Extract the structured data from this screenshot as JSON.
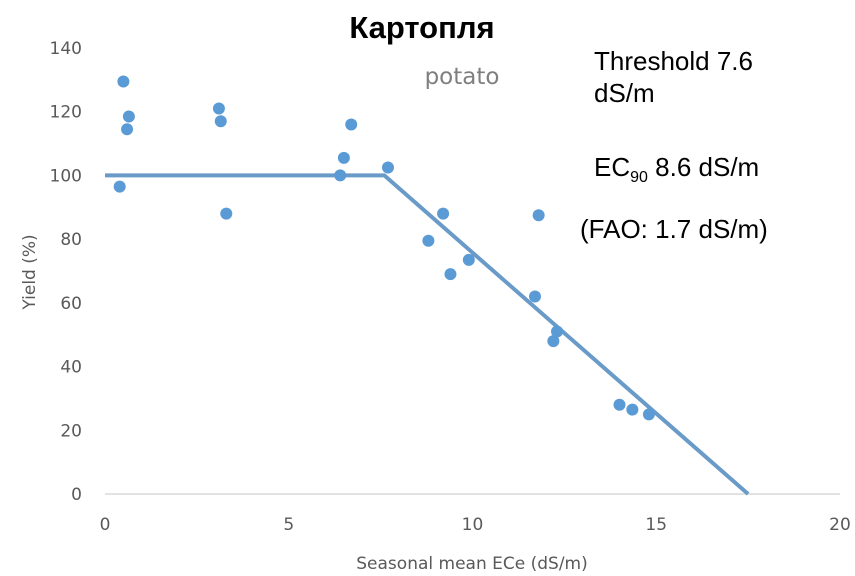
{
  "chart_data": {
    "type": "scatter",
    "title": "Картопля",
    "subtitle": "potato",
    "xlabel": "Seasonal mean ECe (dS/m)",
    "ylabel": "Yield (%)",
    "xlim": [
      0,
      20
    ],
    "ylim": [
      0,
      140
    ],
    "xticks": [
      "0",
      "5",
      "10",
      "15",
      "20"
    ],
    "yticks": [
      "0",
      "20",
      "40",
      "60",
      "80",
      "100",
      "120",
      "140"
    ],
    "grid": false,
    "point_color": "#5b9bd5",
    "line_color": "#6a9bc8",
    "points": [
      {
        "x": 0.4,
        "y": 96.5
      },
      {
        "x": 0.5,
        "y": 129.5
      },
      {
        "x": 0.6,
        "y": 114.5
      },
      {
        "x": 0.65,
        "y": 118.5
      },
      {
        "x": 3.1,
        "y": 121
      },
      {
        "x": 3.15,
        "y": 117
      },
      {
        "x": 3.3,
        "y": 88
      },
      {
        "x": 6.4,
        "y": 100
      },
      {
        "x": 6.5,
        "y": 105.5
      },
      {
        "x": 6.7,
        "y": 116
      },
      {
        "x": 7.7,
        "y": 102.5
      },
      {
        "x": 8.8,
        "y": 79.5
      },
      {
        "x": 9.2,
        "y": 88
      },
      {
        "x": 9.4,
        "y": 69
      },
      {
        "x": 9.9,
        "y": 73.5
      },
      {
        "x": 11.7,
        "y": 62
      },
      {
        "x": 11.8,
        "y": 87.5
      },
      {
        "x": 12.2,
        "y": 48
      },
      {
        "x": 12.3,
        "y": 51
      },
      {
        "x": 14.0,
        "y": 28
      },
      {
        "x": 14.35,
        "y": 26.5
      },
      {
        "x": 14.8,
        "y": 25
      }
    ],
    "fit_line": [
      {
        "x": 0,
        "y": 100
      },
      {
        "x": 7.6,
        "y": 100
      },
      {
        "x": 17.5,
        "y": 0
      }
    ]
  },
  "annotations": {
    "threshold_line1": "Threshold 7.6",
    "threshold_line2": "dS/m",
    "ec90_prefix": "EC",
    "ec90_sub": "90",
    "ec90_value": " 8.6 dS/m",
    "fao": "(FAO: 1.7 dS/m)"
  }
}
